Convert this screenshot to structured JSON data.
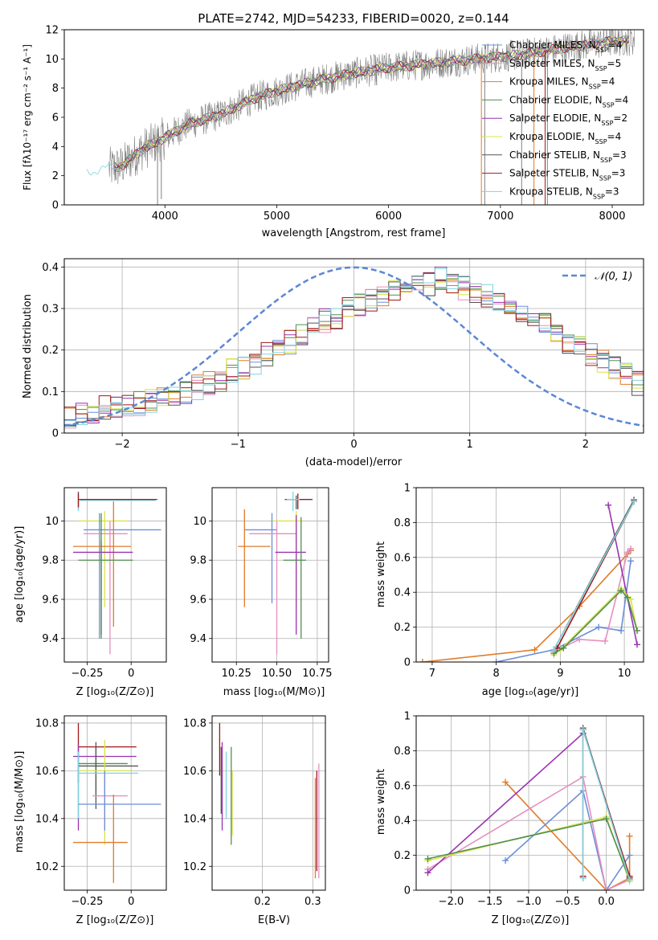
{
  "chart_data": [
    {
      "id": "spectrum",
      "type": "line",
      "title": "PLATE=2742, MJD=54233, FIBERID=0020, z=0.144",
      "xlabel": "wavelength [Angstrom, rest frame]",
      "ylabel": "Flux [fλ10⁻¹⁷ erg cm⁻² s⁻¹ A⁻¹]",
      "xlim": [
        3100,
        8280
      ],
      "ylim": [
        0,
        12
      ],
      "xticks": [
        4000,
        5000,
        6000,
        7000,
        8000
      ],
      "yticks": [
        0,
        2,
        4,
        6,
        8,
        10,
        12
      ],
      "grid": false,
      "legend_position": "top-right",
      "legend": [
        {
          "label": "Chabrier MILES, N",
          "sub": "SSP",
          "suffix": "=4",
          "color": "#6a8fd8"
        },
        {
          "label": "Salpeter MILES, N",
          "sub": "SSP",
          "suffix": "=5",
          "color": "#e58fbf"
        },
        {
          "label": "Kroupa MILES, N",
          "sub": "SSP",
          "suffix": "=4",
          "color": "#e07b2a"
        },
        {
          "label": "Chabrier ELODIE, N",
          "sub": "SSP",
          "suffix": "=4",
          "color": "#4f8f4f"
        },
        {
          "label": "Salpeter ELODIE, N",
          "sub": "SSP",
          "suffix": "=2",
          "color": "#9932b0"
        },
        {
          "label": "Kroupa ELODIE, N",
          "sub": "SSP",
          "suffix": "=4",
          "color": "#d8e34a"
        },
        {
          "label": "Chabrier STELIB, N",
          "sub": "SSP",
          "suffix": "=3",
          "color": "#555555"
        },
        {
          "label": "Salpeter STELIB, N",
          "sub": "SSP",
          "suffix": "=3",
          "color": "#a01818"
        },
        {
          "label": "Kroupa STELIB, N",
          "sub": "SSP",
          "suffix": "=3",
          "color": "#7fd4e0"
        }
      ],
      "data_color": "#808080",
      "continuum": {
        "x": [
          3300,
          3600,
          3800,
          4000,
          4200,
          4500,
          4800,
          5000,
          5300,
          5600,
          6000,
          6400,
          6800,
          7200,
          7600,
          8000,
          8200
        ],
        "y": [
          2.3,
          2.6,
          3.8,
          4.6,
          5.5,
          6.2,
          7.3,
          7.8,
          8.4,
          8.9,
          9.4,
          9.7,
          10.0,
          10.3,
          10.8,
          11.2,
          11.3
        ]
      },
      "absorption_lines": [
        {
          "x": 3934,
          "y": 0.0
        },
        {
          "x": 3968,
          "y": 0.4
        },
        {
          "x": 4861,
          "y": 6.6
        },
        {
          "x": 5175,
          "y": 7.6
        },
        {
          "x": 5893,
          "y": 8.2
        },
        {
          "x": 6563,
          "y": 9.0
        },
        {
          "x": 6860,
          "y": 0.0
        },
        {
          "x": 7190,
          "y": 0.0
        },
        {
          "x": 7420,
          "y": 0.0
        },
        {
          "x": 7600,
          "y": 10.4
        }
      ]
    },
    {
      "id": "residual-hist",
      "type": "area",
      "xlabel": "(data-model)/error",
      "ylabel": "Normed distribution",
      "xlim": [
        -2.5,
        2.5
      ],
      "ylim": [
        0,
        0.42
      ],
      "xticks": [
        -2,
        -1,
        0,
        1,
        2
      ],
      "yticks": [
        0.0,
        0.1,
        0.2,
        0.3,
        0.4
      ],
      "grid": true,
      "legend_position": "top-right",
      "reference_label": "𝒩(0, 1)",
      "reference_color": "#5b87d6",
      "bin_width": 0.1,
      "hist_mean": [
        0.04,
        0.05,
        0.05,
        0.06,
        0.06,
        0.07,
        0.07,
        0.08,
        0.08,
        0.09,
        0.1,
        0.11,
        0.12,
        0.13,
        0.15,
        0.16,
        0.17,
        0.19,
        0.2,
        0.22,
        0.24,
        0.25,
        0.27,
        0.28,
        0.3,
        0.31,
        0.32,
        0.33,
        0.34,
        0.35,
        0.35,
        0.36,
        0.37,
        0.36,
        0.35,
        0.34,
        0.33,
        0.32,
        0.31,
        0.29,
        0.28,
        0.26,
        0.24,
        0.22,
        0.21,
        0.19,
        0.17,
        0.16,
        0.14,
        0.12,
        0.11,
        0.1,
        0.09,
        0.08,
        0.07,
        0.06,
        0.06,
        0.05,
        0.05,
        0.04
      ]
    },
    {
      "id": "age-vs-Z",
      "type": "scatter",
      "xlabel": "Z [log₁₀(Z/Z⊙)]",
      "ylabel": "age  [log₁₀(age/yr)]",
      "xlim": [
        -0.38,
        0.2
      ],
      "ylim": [
        9.28,
        10.17
      ],
      "xticks": [
        -0.25,
        0.0
      ],
      "yticks": [
        9.4,
        9.6,
        9.8,
        10.0
      ],
      "grid": true,
      "points": [
        {
          "x": -0.3,
          "y": 10.11,
          "xlo": -0.3,
          "xhi": 0.15,
          "ylo": 10.06,
          "yhi": 10.15,
          "color": "#555555"
        },
        {
          "x": -0.3,
          "y": 10.105,
          "xlo": -0.3,
          "xhi": 0.14,
          "ylo": 10.05,
          "yhi": 10.14,
          "color": "#7fd4e0"
        },
        {
          "x": -0.3,
          "y": 10.11,
          "xlo": -0.29,
          "xhi": 0.14,
          "ylo": 10.07,
          "yhi": 10.14,
          "color": "#a01818"
        },
        {
          "x": -0.15,
          "y": 10.0,
          "xlo": -0.3,
          "xhi": -0.02,
          "ylo": 9.56,
          "yhi": 10.05,
          "color": "#d8e34a"
        },
        {
          "x": -0.18,
          "y": 9.955,
          "xlo": -0.27,
          "xhi": 0.17,
          "ylo": 9.4,
          "yhi": 10.04,
          "color": "#6a8fd8"
        },
        {
          "x": -0.12,
          "y": 9.935,
          "xlo": -0.27,
          "xhi": -0.02,
          "ylo": 9.32,
          "yhi": 10.0,
          "color": "#e58fbf"
        },
        {
          "x": -0.1,
          "y": 9.87,
          "xlo": -0.33,
          "xhi": 0.0,
          "ylo": 9.46,
          "yhi": 10.1,
          "color": "#e07b2a"
        },
        {
          "x": -0.17,
          "y": 9.84,
          "xlo": -0.33,
          "xhi": 0.01,
          "ylo": 9.42,
          "yhi": 9.9,
          "color": "#9932b0"
        },
        {
          "x": -0.17,
          "y": 9.8,
          "xlo": -0.3,
          "xhi": 0.01,
          "ylo": 9.4,
          "yhi": 10.04,
          "color": "#4f8f4f"
        }
      ]
    },
    {
      "id": "age-vs-mass",
      "type": "scatter",
      "xlabel": "mass [log₁₀(M/M⊙)]",
      "ylabel": "",
      "xlim": [
        10.1,
        10.82
      ],
      "ylim": [
        9.28,
        10.17
      ],
      "xticks": [
        10.25,
        10.5,
        10.75
      ],
      "xtick_labels": [
        "10.25",
        "10.50",
        "10.75"
      ],
      "yticks": [
        9.4,
        9.6,
        9.8,
        10.0
      ],
      "grid": true,
      "points": [
        {
          "x": 10.62,
          "y": 10.11,
          "xlo": 10.55,
          "xhi": 10.72,
          "ylo": 10.06,
          "yhi": 10.13,
          "color": "#555555"
        },
        {
          "x": 10.63,
          "y": 10.11,
          "xlo": 10.55,
          "xhi": 10.72,
          "ylo": 10.06,
          "yhi": 10.14,
          "color": "#a01818"
        },
        {
          "x": 10.6,
          "y": 10.11,
          "xlo": 10.56,
          "xhi": 10.64,
          "ylo": 10.05,
          "yhi": 10.15,
          "color": "#7fd4e0"
        },
        {
          "x": 10.62,
          "y": 10.0,
          "xlo": 10.47,
          "xhi": 10.66,
          "ylo": 9.56,
          "yhi": 10.05,
          "color": "#d8e34a"
        },
        {
          "x": 10.47,
          "y": 9.955,
          "xlo": 10.3,
          "xhi": 10.5,
          "ylo": 9.58,
          "yhi": 10.04,
          "color": "#6a8fd8"
        },
        {
          "x": 10.5,
          "y": 9.935,
          "xlo": 10.33,
          "xhi": 10.62,
          "ylo": 9.32,
          "yhi": 10.0,
          "color": "#e58fbf"
        },
        {
          "x": 10.3,
          "y": 9.87,
          "xlo": 10.26,
          "xhi": 10.46,
          "ylo": 9.56,
          "yhi": 10.06,
          "color": "#e07b2a"
        },
        {
          "x": 10.62,
          "y": 9.84,
          "xlo": 10.49,
          "xhi": 10.68,
          "ylo": 9.42,
          "yhi": 10.03,
          "color": "#9932b0"
        },
        {
          "x": 10.65,
          "y": 9.8,
          "xlo": 10.54,
          "xhi": 10.68,
          "ylo": 9.4,
          "yhi": 10.02,
          "color": "#4f8f4f"
        }
      ]
    },
    {
      "id": "weight-vs-age",
      "type": "line",
      "xlabel": "age  [log₁₀(age/yr)]",
      "ylabel": "mass weight",
      "xlim": [
        6.75,
        10.3
      ],
      "ylim": [
        0,
        1.0
      ],
      "xticks": [
        7,
        8,
        9,
        10
      ],
      "yticks": [
        0.0,
        0.2,
        0.4,
        0.6,
        0.8,
        1.0
      ],
      "grid": true,
      "series": [
        {
          "color": "#e07b2a",
          "x": [
            6.85,
            8.6,
            9.3,
            10.05,
            10.1
          ],
          "y": [
            0.0,
            0.07,
            0.32,
            0.62,
            0.64
          ]
        },
        {
          "color": "#6a8fd8",
          "x": [
            8.0,
            8.9,
            9.6,
            9.95,
            10.1
          ],
          "y": [
            0.0,
            0.07,
            0.2,
            0.18,
            0.58
          ]
        },
        {
          "color": "#e58fbf",
          "x": [
            8.9,
            9.3,
            9.7,
            10.05,
            10.1
          ],
          "y": [
            0.06,
            0.13,
            0.12,
            0.63,
            0.65
          ]
        },
        {
          "color": "#9932b0",
          "x": [
            9.75,
            10.2
          ],
          "y": [
            0.9,
            0.1
          ]
        },
        {
          "color": "#d8e34a",
          "x": [
            8.9,
            9.0,
            9.95,
            10.1,
            10.2
          ],
          "y": [
            0.04,
            0.07,
            0.42,
            0.36,
            0.18
          ]
        },
        {
          "color": "#4f8f4f",
          "x": [
            8.9,
            9.05,
            9.95,
            10.05,
            10.2
          ],
          "y": [
            0.05,
            0.08,
            0.41,
            0.37,
            0.18
          ]
        },
        {
          "color": "#555555",
          "x": [
            8.9,
            10.15
          ],
          "y": [
            0.07,
            0.93
          ]
        },
        {
          "color": "#a01818",
          "x": [
            8.95,
            10.15
          ],
          "y": [
            0.08,
            0.92
          ]
        },
        {
          "color": "#7fd4e0",
          "x": [
            8.9,
            10.15
          ],
          "y": [
            0.07,
            0.92
          ]
        }
      ]
    },
    {
      "id": "mass-vs-Z",
      "type": "scatter",
      "xlabel": "Z [log₁₀(Z/Z⊙)]",
      "ylabel": "mass [log₁₀(M/M⊙)]",
      "xlim": [
        -0.38,
        0.2
      ],
      "ylim": [
        10.1,
        10.83
      ],
      "xticks": [
        -0.25,
        0.0
      ],
      "yticks": [
        10.2,
        10.4,
        10.6,
        10.8
      ],
      "grid": true,
      "points": [
        {
          "x": -0.3,
          "y": 10.7,
          "xlo": -0.3,
          "xhi": 0.03,
          "ylo": 10.55,
          "yhi": 10.8,
          "color": "#a01818"
        },
        {
          "x": -0.3,
          "y": 10.66,
          "xlo": -0.33,
          "xhi": 0.03,
          "ylo": 10.35,
          "yhi": 10.71,
          "color": "#9932b0"
        },
        {
          "x": -0.2,
          "y": 10.63,
          "xlo": -0.3,
          "xhi": -0.02,
          "ylo": 10.5,
          "yhi": 10.7,
          "color": "#4f8f4f"
        },
        {
          "x": -0.2,
          "y": 10.62,
          "xlo": -0.3,
          "xhi": 0.04,
          "ylo": 10.44,
          "yhi": 10.72,
          "color": "#555555"
        },
        {
          "x": -0.15,
          "y": 10.6,
          "xlo": -0.3,
          "xhi": 0.0,
          "ylo": 10.29,
          "yhi": 10.73,
          "color": "#d8e34a"
        },
        {
          "x": -0.3,
          "y": 10.59,
          "xlo": -0.3,
          "xhi": 0.04,
          "ylo": 10.4,
          "yhi": 10.68,
          "color": "#7fd4e0"
        },
        {
          "x": -0.15,
          "y": 10.495,
          "xlo": -0.22,
          "xhi": -0.02,
          "ylo": 10.35,
          "yhi": 10.6,
          "color": "#e58fbf"
        },
        {
          "x": -0.15,
          "y": 10.46,
          "xlo": -0.3,
          "xhi": 0.17,
          "ylo": 10.35,
          "yhi": 10.6,
          "color": "#6a8fd8"
        },
        {
          "x": -0.1,
          "y": 10.3,
          "xlo": -0.33,
          "xhi": -0.02,
          "ylo": 10.13,
          "yhi": 10.5,
          "color": "#e07b2a"
        }
      ]
    },
    {
      "id": "mass-vs-ebv",
      "type": "scatter",
      "xlabel": "E(B-V)",
      "ylabel": "",
      "xlim": [
        0.1,
        0.325
      ],
      "ylim": [
        10.1,
        10.83
      ],
      "xticks": [
        0.2,
        0.3
      ],
      "xtick_labels": [
        "0.2",
        "0.3"
      ],
      "yticks": [
        10.2,
        10.4,
        10.6,
        10.8
      ],
      "grid": true,
      "points": [
        {
          "x": 0.115,
          "ylo": 10.58,
          "yhi": 10.8,
          "color": "#a01818"
        },
        {
          "x": 0.118,
          "ylo": 10.42,
          "yhi": 10.7,
          "color": "#555555"
        },
        {
          "x": 0.12,
          "ylo": 10.35,
          "yhi": 10.72,
          "color": "#9932b0"
        },
        {
          "x": 0.128,
          "ylo": 10.4,
          "yhi": 10.68,
          "color": "#7fd4e0"
        },
        {
          "x": 0.138,
          "ylo": 10.29,
          "yhi": 10.7,
          "color": "#4f8f4f"
        },
        {
          "x": 0.14,
          "ylo": 10.33,
          "yhi": 10.6,
          "color": "#d8e34a"
        },
        {
          "x": 0.305,
          "ylo": 10.15,
          "yhi": 10.57,
          "color": "#e07b2a"
        },
        {
          "x": 0.312,
          "ylo": 10.15,
          "yhi": 10.63,
          "color": "#e58fbf"
        },
        {
          "x": 0.308,
          "ylo": 10.18,
          "yhi": 10.6,
          "color": "#a01818"
        }
      ]
    },
    {
      "id": "weight-vs-Z",
      "type": "line",
      "xlabel": "Z [log₁₀(Z/Z⊙)]",
      "ylabel": "mass weight",
      "xlim": [
        -2.45,
        0.48
      ],
      "ylim": [
        0,
        1.0
      ],
      "xticks": [
        -2.0,
        -1.5,
        -1.0,
        -0.5,
        0.0
      ],
      "xtick_labels": [
        "−2.0",
        "−1.5",
        "−1.0",
        "−0.5",
        "0.0"
      ],
      "yticks": [
        0.0,
        0.2,
        0.4,
        0.6,
        0.8,
        1.0
      ],
      "grid": true,
      "series": [
        {
          "color": "#e07b2a",
          "x": [
            -1.3,
            0.0,
            0.3,
            0.3
          ],
          "y": [
            0.62,
            0.0,
            0.07,
            0.31
          ]
        },
        {
          "color": "#6a8fd8",
          "x": [
            -1.3,
            -0.3,
            0.0,
            0.3
          ],
          "y": [
            0.17,
            0.57,
            0.0,
            0.2
          ]
        },
        {
          "color": "#e58fbf",
          "x": [
            -2.3,
            -0.3,
            0.0,
            0.3
          ],
          "y": [
            0.12,
            0.65,
            0.0,
            0.06
          ]
        },
        {
          "color": "#9932b0",
          "x": [
            -2.3,
            -0.3
          ],
          "y": [
            0.1,
            0.9
          ]
        },
        {
          "color": "#d8e34a",
          "x": [
            -2.3,
            0.0,
            0.3
          ],
          "y": [
            0.17,
            0.42,
            0.05
          ]
        },
        {
          "color": "#4f8f4f",
          "x": [
            -2.3,
            0.0,
            0.3
          ],
          "y": [
            0.18,
            0.41,
            0.06
          ]
        },
        {
          "color": "#555555",
          "x": [
            -0.3,
            -0.3,
            0.3
          ],
          "y": [
            0.07,
            0.93,
            0.07
          ]
        },
        {
          "color": "#a01818",
          "x": [
            -0.3,
            -0.3,
            0.3
          ],
          "y": [
            0.08,
            0.92,
            0.08
          ]
        },
        {
          "color": "#7fd4e0",
          "x": [
            -0.3,
            -0.3,
            0.3
          ],
          "y": [
            0.07,
            0.92,
            0.06
          ]
        }
      ]
    }
  ]
}
